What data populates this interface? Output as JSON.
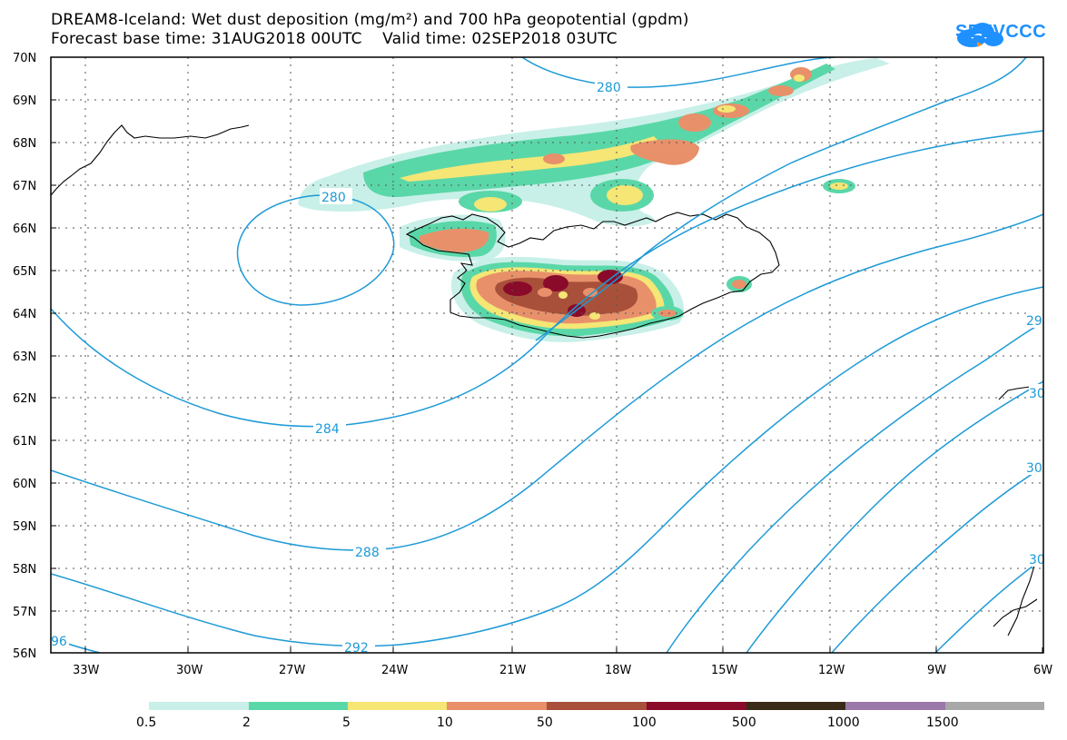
{
  "header": {
    "title_line1": "DREAM8-Iceland: Wet dust deposition (mg/m²) and 700 hPa geopotential (gpdm)",
    "title_line2": "Forecast base time: 31AUG2018 00UTC    Valid time: 02SEP2018 03UTC"
  },
  "logo": {
    "text": "SEEVCCC",
    "color": "#1e90ff"
  },
  "map": {
    "lat_range": [
      56,
      70
    ],
    "lon_range": [
      -34.5,
      -6
    ],
    "lat_labels": [
      "70N",
      "69N",
      "68N",
      "67N",
      "66N",
      "65N",
      "64N",
      "63N",
      "62N",
      "61N",
      "60N",
      "59N",
      "58N",
      "57N",
      "56N"
    ],
    "lon_labels": [
      "33W",
      "30W",
      "27W",
      "24W",
      "21W",
      "18W",
      "15W",
      "12W",
      "9W",
      "6W"
    ],
    "grid": true,
    "contour_color": "#1e9ad6",
    "contour_labels": [
      {
        "text": "280"
      },
      {
        "text": "280"
      },
      {
        "text": "284"
      },
      {
        "text": "288"
      },
      {
        "text": "292"
      },
      {
        "text": "96"
      },
      {
        "text": "29"
      },
      {
        "text": "30"
      },
      {
        "text": "30"
      },
      {
        "text": "30"
      }
    ]
  },
  "colorbar": {
    "labels": [
      "0.5",
      "2",
      "5",
      "10",
      "50",
      "100",
      "500",
      "1000",
      "1500"
    ],
    "colors": [
      "#c8f0e8",
      "#5ad7a8",
      "#f5e675",
      "#e8906a",
      "#a8503a",
      "#8a0a2a",
      "#3a2a18",
      "#9a78a8",
      "#a8a8a8"
    ]
  }
}
